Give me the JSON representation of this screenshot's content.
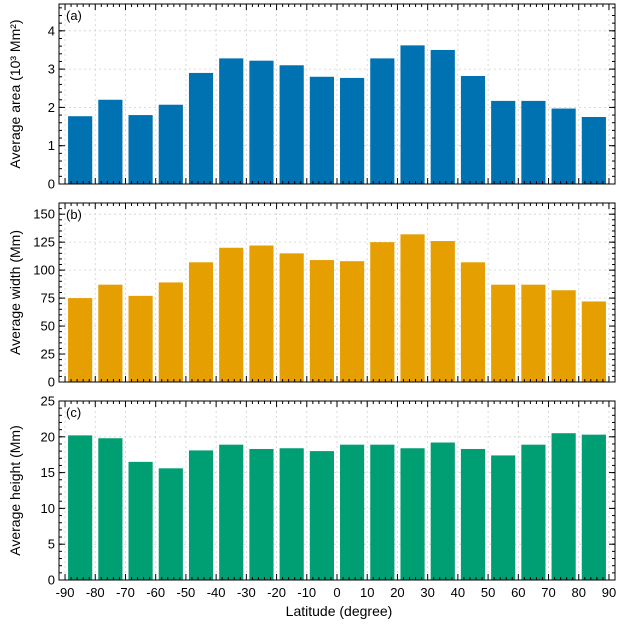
{
  "chart_data": [
    {
      "type": "bar",
      "panel_label": "(a)",
      "ylabel": "Average area (10³ Mm²)",
      "color": "#0072b2",
      "ylim": [
        0,
        4.7
      ],
      "yticks": [
        0,
        1,
        2,
        3,
        4
      ],
      "yminor": 0.2,
      "x": [
        -85,
        -75,
        -65,
        -55,
        -45,
        -35,
        -25,
        -15,
        -5,
        5,
        15,
        25,
        35,
        45,
        55,
        65,
        75,
        85
      ],
      "values": [
        1.77,
        2.2,
        1.8,
        2.07,
        2.9,
        3.28,
        3.22,
        3.1,
        2.8,
        2.77,
        3.28,
        3.62,
        3.5,
        2.82,
        2.17,
        2.17,
        1.97,
        1.75
      ]
    },
    {
      "type": "bar",
      "panel_label": "(b)",
      "ylabel": "Average width (Mm)",
      "color": "#e69f00",
      "ylim": [
        0,
        160
      ],
      "yticks": [
        0,
        25,
        50,
        75,
        100,
        125,
        150
      ],
      "yminor": 5,
      "x": [
        -85,
        -75,
        -65,
        -55,
        -45,
        -35,
        -25,
        -15,
        -5,
        5,
        15,
        25,
        35,
        45,
        55,
        65,
        75,
        85
      ],
      "values": [
        75,
        87,
        77,
        89,
        107,
        120,
        122,
        115,
        109,
        108,
        125,
        132,
        126,
        107,
        87,
        87,
        82,
        72
      ]
    },
    {
      "type": "bar",
      "panel_label": "(c)",
      "ylabel": "Average height (Mm)",
      "color": "#009e73",
      "ylim": [
        0,
        25
      ],
      "yticks": [
        0,
        5,
        10,
        15,
        20,
        25
      ],
      "yminor": 1,
      "x": [
        -85,
        -75,
        -65,
        -55,
        -45,
        -35,
        -25,
        -15,
        -5,
        5,
        15,
        25,
        35,
        45,
        55,
        65,
        75,
        85
      ],
      "values": [
        20.2,
        19.8,
        16.5,
        15.6,
        18.1,
        18.9,
        18.3,
        18.4,
        18.0,
        18.9,
        18.9,
        18.4,
        19.2,
        18.3,
        17.4,
        18.9,
        20.5,
        20.3
      ]
    }
  ],
  "shared_x": {
    "xlabel": "Latitude (degree)",
    "xlim": [
      -92,
      92
    ],
    "xticks": [
      -90,
      -80,
      -70,
      -60,
      -50,
      -40,
      -30,
      -20,
      -10,
      0,
      10,
      20,
      30,
      40,
      50,
      60,
      70,
      80,
      90
    ],
    "xtick_labels": [
      "-90",
      "-80",
      "-70",
      "-60",
      "-50",
      "-40",
      "-30",
      "-20",
      "-10",
      "0",
      "10",
      "20",
      "30",
      "40",
      "50",
      "60",
      "70",
      "80",
      "90"
    ],
    "xminor": 2,
    "bar_width": 8
  },
  "grid": true
}
